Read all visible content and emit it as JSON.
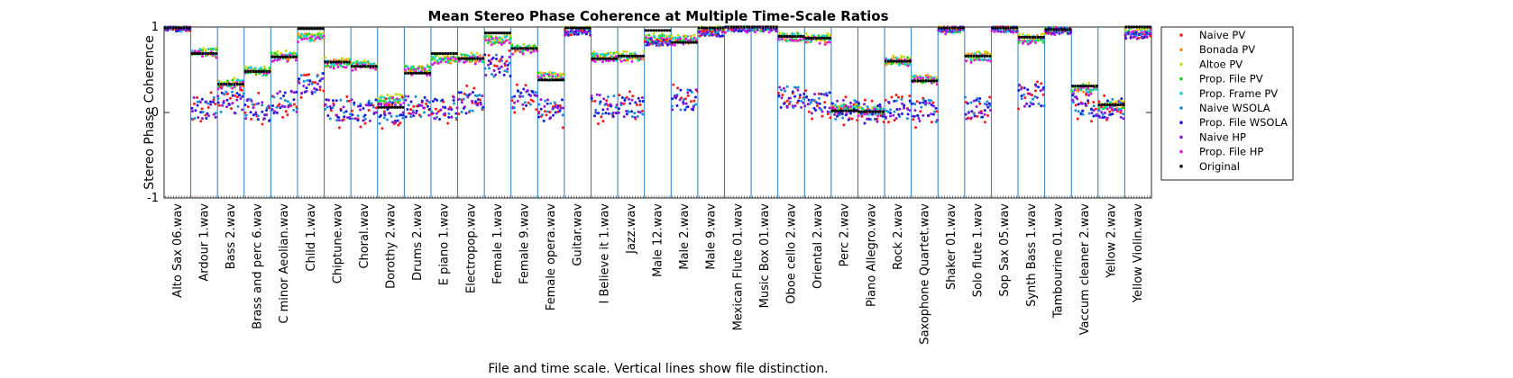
{
  "chart_data": {
    "type": "scatter",
    "title": "Mean Stereo Phase Coherence at Multiple Time-Scale Ratios",
    "xlabel": "File and time scale. Vertical lines show file distinction.",
    "ylabel": "Stereo Phase Coherence",
    "ylim": [
      -1,
      1
    ],
    "yticks": [
      -1,
      0,
      1
    ],
    "ticks_per_file": 10,
    "legend_position": "top-right, outside plot",
    "files": [
      "Alto Sax 06.wav",
      "Ardour 1.wav",
      "Bass 2.wav",
      "Brass and perc 6.wav",
      "C minor Aeolian.wav",
      "Child 1.wav",
      "Chiptune.wav",
      "Choral.wav",
      "Dorothy 2.wav",
      "Drums 2.wav",
      "E piano 1.wav",
      "Electropop.wav",
      "Female 1.wav",
      "Female 9.wav",
      "Female opera.wav",
      "Guitar.wav",
      "I Believe it 1.wav",
      "Jazz.wav",
      "Male 12.wav",
      "Male 2.wav",
      "Male 9.wav",
      "Mexican Flute 01.wav",
      "Music Box 01.wav",
      "Oboe cello 2.wav",
      "Oriental 2.wav",
      "Perc 2.wav",
      "Piano Allegro.wav",
      "Rock 2.wav",
      "Saxophone Quartet.wav",
      "Shaker 01.wav",
      "Solo flute 1.wav",
      "Sop Sax 05.wav",
      "Synth Bass 1.wav",
      "Tambourine 01.wav",
      "Vaccum cleaner 2.wav",
      "Yellow 2.wav",
      "Yellow Violin.wav"
    ],
    "series_names": [
      "Naive PV",
      "Bonada PV",
      "Altoe PV",
      "Prop. File PV",
      "Prop. Frame PV",
      "Naive WSOLA",
      "Prop. File WSOLA",
      "Naive HP",
      "Prop. File HP",
      "Original"
    ],
    "series_colors": [
      "#ff1a1a",
      "#ff8a1a",
      "#c8dc1a",
      "#1ad81a",
      "#1acfcf",
      "#1a8cd8",
      "#1a1ad8",
      "#8c1ad8",
      "#e01ae0",
      "#000000"
    ],
    "original": [
      0.99,
      0.69,
      0.33,
      0.48,
      0.65,
      0.98,
      0.59,
      0.54,
      0.06,
      0.46,
      0.69,
      0.63,
      0.93,
      0.75,
      0.38,
      0.99,
      0.63,
      0.66,
      0.96,
      0.82,
      0.99,
      1.0,
      1.0,
      0.89,
      0.87,
      0.02,
      0.01,
      0.6,
      0.37,
      0.99,
      0.66,
      0.99,
      0.88,
      0.97,
      0.31,
      0.09,
      1.0
    ],
    "mid_group": [
      0.99,
      0.7,
      0.34,
      0.48,
      0.66,
      0.88,
      0.58,
      0.55,
      0.15,
      0.5,
      0.62,
      0.63,
      0.85,
      0.74,
      0.42,
      0.96,
      0.65,
      0.65,
      0.86,
      0.85,
      0.97,
      1.0,
      1.0,
      0.88,
      0.86,
      0.05,
      0.02,
      0.6,
      0.39,
      0.98,
      0.65,
      0.99,
      0.86,
      0.96,
      0.28,
      0.08,
      0.96
    ],
    "low_group": [
      0.99,
      0.05,
      0.12,
      0.03,
      0.12,
      0.35,
      0.03,
      0.03,
      0.0,
      0.07,
      0.05,
      0.12,
      0.55,
      0.15,
      0.03,
      0.94,
      0.08,
      0.06,
      0.82,
      0.15,
      0.93,
      0.99,
      0.99,
      0.18,
      0.12,
      0.02,
      -0.02,
      0.05,
      0.02,
      0.98,
      0.05,
      0.98,
      0.2,
      0.96,
      0.08,
      0.05,
      0.9
    ]
  }
}
